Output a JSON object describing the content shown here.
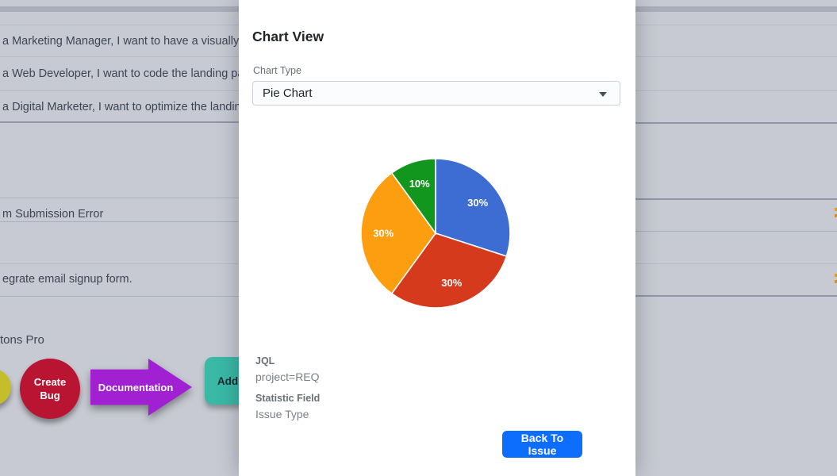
{
  "modal": {
    "title": "Chart View",
    "chart_type_label": "Chart Type",
    "chart_type_value": "Pie Chart",
    "jql_label": "JQL",
    "jql_value": "project=REQ",
    "statistic_field_label": "Statistic Field",
    "statistic_field_value": "Issue Type",
    "back_button_label": "Back To Issue",
    "accent_color": "#0d6efd"
  },
  "chart_data": {
    "type": "pie",
    "labels": [
      "30%",
      "30%",
      "30%",
      "10%"
    ],
    "values": [
      30,
      30,
      30,
      10
    ],
    "colors": [
      "#3D6CD3",
      "#D63A1C",
      "#FC9E0F",
      "#12961E"
    ],
    "start_angle_deg": -90,
    "direction": "clockwise",
    "slice_border_color": "#ffffff",
    "label_color": "#ffffff",
    "legend": "none"
  },
  "background": {
    "left_rows": [
      {
        "text": "a Marketing Manager, I want to have a visually ap"
      },
      {
        "text": "a Web Developer, I want to code the landing pag"
      },
      {
        "text": "a Digital Marketer, I want to optimize the landing"
      },
      {
        "text": "m Submission Error"
      },
      {
        "text": "egrate email signup form."
      }
    ],
    "section_label": "tons Pro",
    "shape_buttons": {
      "create_bug": {
        "label": "Create Bug",
        "color": "#B91432"
      },
      "documentation": {
        "label": "Documentation",
        "color": "#A120D1"
      },
      "add": {
        "label": "Add",
        "color": "#39B9A6"
      },
      "yellow_partial": {
        "label": "",
        "color": "#C5BE2B"
      }
    },
    "marker_color": "#D9A02C"
  }
}
